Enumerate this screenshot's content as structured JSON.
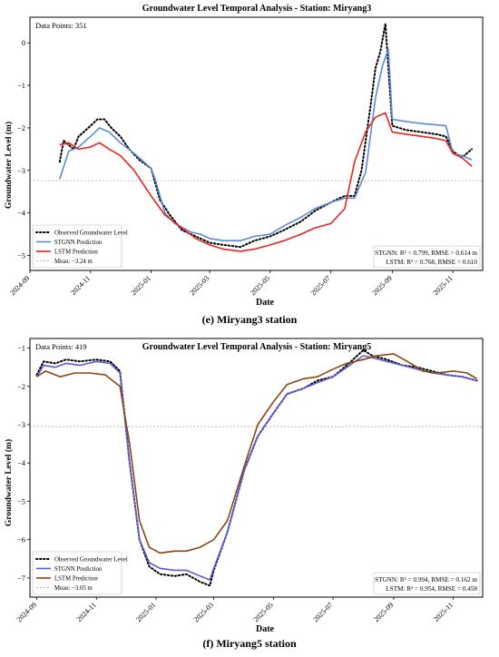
{
  "figure": {
    "caption_e": "(e) Miryang3 station",
    "caption_f": "(f) Miryang5 station"
  },
  "chart_data": [
    {
      "type": "line",
      "title": "Groundwater Level Temporal Analysis - Station: Miryang3",
      "xlabel": "Date",
      "ylabel": "Groundwater Level (m)",
      "data_points_label": "Data Points: 351",
      "x_ticks": [
        "2024-09-01",
        "2024-11-01",
        "2025-01-01",
        "2025-03-01",
        "2025-05-01",
        "2025-07-01",
        "2025-09-01",
        "2025-11-01"
      ],
      "x_tick_labels": [
        "2024-09",
        "2024-11",
        "2025-01",
        "2025-03",
        "2025-05",
        "2025-07",
        "2025-09",
        "2025-11"
      ],
      "xlim": [
        "2024-09-01",
        "2025-12-01"
      ],
      "y_ticks": [
        0,
        -1,
        -2,
        -3,
        -4,
        -5
      ],
      "ylim": [
        -5.35,
        0.6
      ],
      "mean": -3.24,
      "grid": false,
      "legend_position": "lower-left",
      "legend": [
        "Observed Groundwater Level",
        "STGNN Prediction",
        "LSTM Prediction",
        "Mean: −3.24 m"
      ],
      "metrics": [
        "STGNN: R² = 0.799, RMSE = 0.614 m",
        "LSTM: R² = 0.768, RMSE = 0.610"
      ],
      "colors": {
        "observed": "#000000",
        "stgnn": "#5b8bd6",
        "lstm": "#e8241f",
        "mean": "#9a9a9a"
      },
      "series": [
        {
          "name": "Observed Groundwater Level",
          "style": "dotted",
          "x": [
            "2024-10-01",
            "2024-10-05",
            "2024-10-10",
            "2024-10-15",
            "2024-10-20",
            "2024-10-25",
            "2024-11-01",
            "2024-11-08",
            "2024-11-15",
            "2024-11-22",
            "2024-12-01",
            "2024-12-10",
            "2024-12-20",
            "2025-01-01",
            "2025-01-10",
            "2025-01-20",
            "2025-02-01",
            "2025-02-15",
            "2025-03-01",
            "2025-03-15",
            "2025-04-01",
            "2025-04-15",
            "2025-05-01",
            "2025-05-15",
            "2025-06-01",
            "2025-06-15",
            "2025-07-01",
            "2025-07-15",
            "2025-07-25",
            "2025-08-01",
            "2025-08-10",
            "2025-08-15",
            "2025-08-20",
            "2025-08-25",
            "2025-09-01",
            "2025-09-15",
            "2025-10-01",
            "2025-10-15",
            "2025-10-25",
            "2025-11-01",
            "2025-11-10",
            "2025-11-20"
          ],
          "y": [
            -2.8,
            -2.3,
            -2.4,
            -2.5,
            -2.2,
            -2.1,
            -1.95,
            -1.8,
            -1.8,
            -2.0,
            -2.2,
            -2.5,
            -2.75,
            -2.95,
            -3.7,
            -4.05,
            -4.4,
            -4.55,
            -4.7,
            -4.75,
            -4.8,
            -4.65,
            -4.55,
            -4.4,
            -4.2,
            -3.95,
            -3.75,
            -3.6,
            -3.6,
            -3.0,
            -1.5,
            -0.6,
            -0.2,
            0.45,
            -1.95,
            -2.05,
            -2.1,
            -2.15,
            -2.2,
            -2.55,
            -2.7,
            -2.5
          ]
        },
        {
          "name": "STGNN Prediction",
          "style": "solid",
          "x": [
            "2024-10-01",
            "2024-10-10",
            "2024-10-20",
            "2024-11-01",
            "2024-11-10",
            "2024-11-20",
            "2024-12-01",
            "2024-12-15",
            "2025-01-01",
            "2025-01-05",
            "2025-01-15",
            "2025-01-25",
            "2025-02-10",
            "2025-02-20",
            "2025-03-01",
            "2025-03-15",
            "2025-04-01",
            "2025-04-15",
            "2025-05-01",
            "2025-05-15",
            "2025-06-01",
            "2025-06-15",
            "2025-07-01",
            "2025-07-15",
            "2025-07-25",
            "2025-08-05",
            "2025-08-15",
            "2025-08-22",
            "2025-08-28",
            "2025-09-01",
            "2025-09-15",
            "2025-10-01",
            "2025-10-15",
            "2025-10-25",
            "2025-11-01",
            "2025-11-10",
            "2025-11-20"
          ],
          "y": [
            -3.2,
            -2.55,
            -2.45,
            -2.2,
            -2.0,
            -2.1,
            -2.35,
            -2.6,
            -2.95,
            -3.2,
            -4.0,
            -4.25,
            -4.45,
            -4.5,
            -4.6,
            -4.65,
            -4.65,
            -4.55,
            -4.5,
            -4.3,
            -4.1,
            -3.9,
            -3.75,
            -3.65,
            -3.65,
            -3.05,
            -1.3,
            -0.55,
            -0.15,
            -1.8,
            -1.85,
            -1.9,
            -1.93,
            -1.95,
            -2.6,
            -2.65,
            -2.75
          ]
        },
        {
          "name": "LSTM Prediction",
          "style": "solid",
          "x": [
            "2024-10-01",
            "2024-10-10",
            "2024-10-20",
            "2024-11-01",
            "2024-11-10",
            "2024-11-20",
            "2024-12-01",
            "2024-12-15",
            "2025-01-01",
            "2025-01-15",
            "2025-02-01",
            "2025-02-15",
            "2025-03-01",
            "2025-03-15",
            "2025-04-01",
            "2025-04-15",
            "2025-05-01",
            "2025-05-15",
            "2025-06-01",
            "2025-06-15",
            "2025-07-01",
            "2025-07-15",
            "2025-07-25",
            "2025-08-05",
            "2025-08-15",
            "2025-08-25",
            "2025-09-01",
            "2025-09-15",
            "2025-10-01",
            "2025-10-15",
            "2025-10-25",
            "2025-11-01",
            "2025-11-10",
            "2025-11-20"
          ],
          "y": [
            -2.4,
            -2.35,
            -2.5,
            -2.45,
            -2.35,
            -2.5,
            -2.65,
            -3.0,
            -3.6,
            -4.05,
            -4.35,
            -4.6,
            -4.75,
            -4.85,
            -4.9,
            -4.85,
            -4.75,
            -4.65,
            -4.5,
            -4.35,
            -4.25,
            -3.9,
            -2.8,
            -2.1,
            -1.75,
            -1.65,
            -2.1,
            -2.15,
            -2.2,
            -2.25,
            -2.3,
            -2.6,
            -2.7,
            -2.9
          ]
        }
      ]
    },
    {
      "type": "line",
      "title": "Groundwater Level Temporal Analysis - Station: Miryang5",
      "xlabel": "Date",
      "ylabel": "Groundwater Level (m)",
      "data_points_label": "Data Points: 419",
      "x_ticks": [
        "2024-09-01",
        "2024-11-01",
        "2025-01-01",
        "2025-03-01",
        "2025-05-01",
        "2025-07-01",
        "2025-09-01",
        "2025-11-01"
      ],
      "x_tick_labels": [
        "2024-09",
        "2024-11",
        "2025-01",
        "2025-03",
        "2025-05",
        "2025-07",
        "2025-09",
        "2025-11"
      ],
      "xlim": [
        "2024-08-25",
        "2025-12-01"
      ],
      "y_ticks": [
        -1,
        -2,
        -3,
        -4,
        -5,
        -6,
        -7
      ],
      "ylim": [
        -7.5,
        -0.75
      ],
      "mean": -3.05,
      "grid": false,
      "legend_position": "lower-left",
      "legend": [
        "Observed Groundwater Level",
        "STGNN Prediction",
        "LSTM Prediction",
        "Mean: −3.05 m"
      ],
      "metrics": [
        "STGNN: R² = 0.994, RMSE = 0.162 m",
        "LSTM: R² = 0.954, RMSE = 0.458"
      ],
      "colors": {
        "observed": "#000000",
        "stgnn": "#5b5bd6",
        "lstm": "#8b4513",
        "mean": "#9a9a9a"
      },
      "series": [
        {
          "name": "Observed Groundwater Level",
          "style": "dotted",
          "x": [
            "2024-09-01",
            "2024-09-08",
            "2024-09-20",
            "2024-10-01",
            "2024-10-15",
            "2024-11-01",
            "2024-11-15",
            "2024-11-25",
            "2024-12-05",
            "2024-12-15",
            "2024-12-25",
            "2025-01-05",
            "2025-01-20",
            "2025-02-01",
            "2025-02-15",
            "2025-02-25",
            "2025-03-01",
            "2025-03-15",
            "2025-04-01",
            "2025-04-15",
            "2025-05-01",
            "2025-05-15",
            "2025-06-01",
            "2025-06-15",
            "2025-07-01",
            "2025-07-15",
            "2025-08-01",
            "2025-08-10",
            "2025-08-25",
            "2025-09-10",
            "2025-09-25",
            "2025-10-10",
            "2025-10-25",
            "2025-11-10",
            "2025-11-25"
          ],
          "y": [
            -1.7,
            -1.35,
            -1.4,
            -1.3,
            -1.35,
            -1.3,
            -1.35,
            -1.6,
            -4.0,
            -6.0,
            -6.7,
            -6.9,
            -6.95,
            -6.9,
            -7.1,
            -7.2,
            -6.8,
            -5.8,
            -4.2,
            -3.3,
            -2.7,
            -2.2,
            -2.05,
            -1.85,
            -1.75,
            -1.45,
            -1.05,
            -1.2,
            -1.3,
            -1.45,
            -1.5,
            -1.6,
            -1.7,
            -1.75,
            -1.85
          ]
        },
        {
          "name": "STGNN Prediction",
          "style": "solid",
          "x": [
            "2024-09-01",
            "2024-09-08",
            "2024-09-20",
            "2024-10-01",
            "2024-10-15",
            "2024-11-01",
            "2024-11-15",
            "2024-11-25",
            "2024-12-05",
            "2024-12-15",
            "2024-12-25",
            "2025-01-05",
            "2025-01-20",
            "2025-02-01",
            "2025-02-15",
            "2025-02-25",
            "2025-03-01",
            "2025-03-15",
            "2025-04-01",
            "2025-04-15",
            "2025-05-01",
            "2025-05-15",
            "2025-06-01",
            "2025-06-15",
            "2025-07-01",
            "2025-07-15",
            "2025-08-01",
            "2025-08-10",
            "2025-08-25",
            "2025-09-10",
            "2025-09-25",
            "2025-10-10",
            "2025-10-25",
            "2025-11-10",
            "2025-11-25"
          ],
          "y": [
            -1.75,
            -1.45,
            -1.5,
            -1.4,
            -1.45,
            -1.35,
            -1.4,
            -1.65,
            -4.0,
            -6.0,
            -6.6,
            -6.75,
            -6.8,
            -6.8,
            -6.95,
            -7.05,
            -6.75,
            -5.8,
            -4.2,
            -3.3,
            -2.7,
            -2.2,
            -2.05,
            -1.9,
            -1.75,
            -1.5,
            -1.2,
            -1.25,
            -1.35,
            -1.45,
            -1.55,
            -1.65,
            -1.7,
            -1.75,
            -1.85
          ]
        },
        {
          "name": "LSTM Prediction",
          "style": "solid",
          "x": [
            "2024-09-01",
            "2024-09-10",
            "2024-09-25",
            "2024-10-10",
            "2024-10-25",
            "2024-11-10",
            "2024-11-25",
            "2024-12-05",
            "2024-12-15",
            "2024-12-25",
            "2025-01-05",
            "2025-01-20",
            "2025-02-01",
            "2025-02-15",
            "2025-03-01",
            "2025-03-15",
            "2025-04-01",
            "2025-04-15",
            "2025-05-01",
            "2025-05-15",
            "2025-06-01",
            "2025-06-15",
            "2025-07-01",
            "2025-07-15",
            "2025-08-01",
            "2025-08-15",
            "2025-09-01",
            "2025-09-15",
            "2025-10-01",
            "2025-10-15",
            "2025-11-01",
            "2025-11-15",
            "2025-11-25"
          ],
          "y": [
            -1.75,
            -1.6,
            -1.75,
            -1.65,
            -1.65,
            -1.7,
            -2.0,
            -3.5,
            -5.5,
            -6.2,
            -6.35,
            -6.3,
            -6.3,
            -6.2,
            -6.0,
            -5.5,
            -4.1,
            -3.0,
            -2.4,
            -1.95,
            -1.8,
            -1.75,
            -1.55,
            -1.4,
            -1.3,
            -1.2,
            -1.15,
            -1.35,
            -1.6,
            -1.65,
            -1.6,
            -1.65,
            -1.8
          ]
        }
      ]
    }
  ]
}
